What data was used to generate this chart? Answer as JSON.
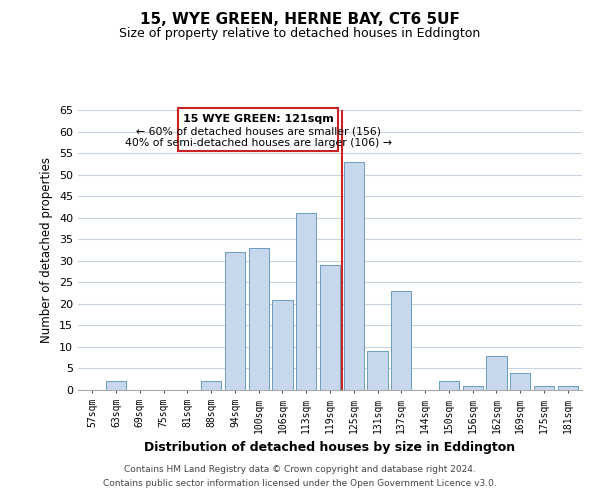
{
  "title": "15, WYE GREEN, HERNE BAY, CT6 5UF",
  "subtitle": "Size of property relative to detached houses in Eddington",
  "xlabel": "Distribution of detached houses by size in Eddington",
  "ylabel": "Number of detached properties",
  "categories": [
    "57sqm",
    "63sqm",
    "69sqm",
    "75sqm",
    "81sqm",
    "88sqm",
    "94sqm",
    "100sqm",
    "106sqm",
    "113sqm",
    "119sqm",
    "125sqm",
    "131sqm",
    "137sqm",
    "144sqm",
    "150sqm",
    "156sqm",
    "162sqm",
    "169sqm",
    "175sqm",
    "181sqm"
  ],
  "values": [
    0,
    2,
    0,
    0,
    0,
    2,
    32,
    33,
    21,
    41,
    29,
    53,
    9,
    23,
    0,
    2,
    1,
    8,
    4,
    1,
    1
  ],
  "bar_color": "#c8d8ec",
  "bar_edge_color": "#6b9dc0",
  "grid_color": "#c8d4e0",
  "annotation_title": "15 WYE GREEN: 121sqm",
  "annotation_line1": "← 60% of detached houses are smaller (156)",
  "annotation_line2": "40% of semi-detached houses are larger (106) →",
  "annotation_box_edge": "#cc2222",
  "ylim": [
    0,
    65
  ],
  "yticks": [
    0,
    5,
    10,
    15,
    20,
    25,
    30,
    35,
    40,
    45,
    50,
    55,
    60,
    65
  ],
  "footer_line1": "Contains HM Land Registry data © Crown copyright and database right 2024.",
  "footer_line2": "Contains public sector information licensed under the Open Government Licence v3.0.",
  "bg_color": "#ffffff"
}
